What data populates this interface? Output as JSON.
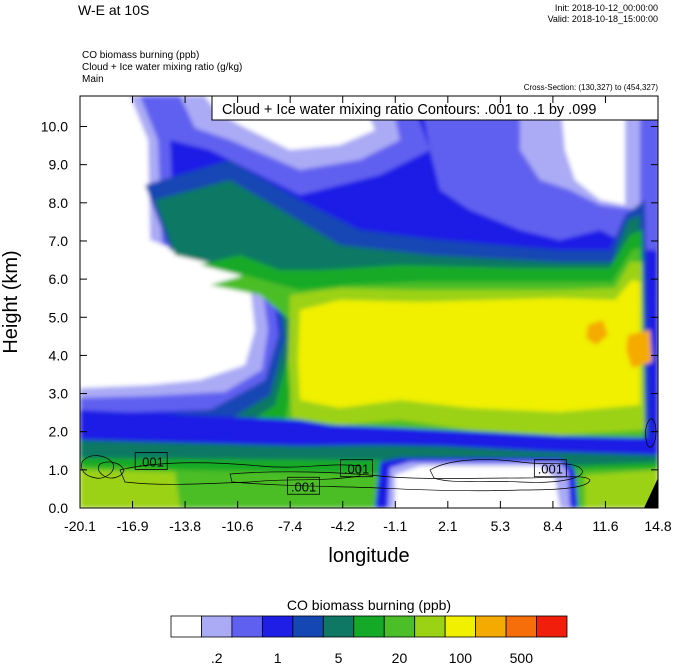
{
  "header": {
    "title": "W-E at 10S",
    "init": "Init: 2018-10-12_00:00:00",
    "valid": "Valid: 2018-10-18_15:00:00",
    "field_1": "CO biomass burning   (ppb)",
    "field_2": "Cloud + Ice water mixing ratio   (g/kg)",
    "field_3": "Main",
    "cross_section": "Cross-Section: (130,327) to (454,327)"
  },
  "chart_data": {
    "type": "heatmap",
    "annotation": "Cloud + Ice water mixing ratio Contours: .001 to .1 by .099",
    "xlabel": "longitude",
    "ylabel": "Height (km)",
    "xlim": [
      -20.1,
      14.8
    ],
    "ylim": [
      0.0,
      10.8
    ],
    "x_ticks": [
      "-20.1",
      "-16.9",
      "-13.8",
      "-10.6",
      "-7.4",
      "-4.2",
      "-1.1",
      "2.1",
      "5.3",
      "8.4",
      "11.6",
      "14.8"
    ],
    "y_ticks": [
      "0.0",
      "1.0",
      "2.0",
      "3.0",
      "4.0",
      "5.0",
      "6.0",
      "7.0",
      "8.0",
      "9.0",
      "10.0"
    ],
    "contour_labels": [
      {
        "text": ".001",
        "x": -15.8,
        "y": 1.22
      },
      {
        "text": ".001",
        "x": -6.6,
        "y": 0.57
      },
      {
        "text": ".001",
        "x": -3.4,
        "y": 1.03
      },
      {
        "text": ".001",
        "x": 8.3,
        "y": 1.03
      }
    ],
    "colorbar": {
      "title": "CO biomass burning  (ppb)",
      "colors": [
        "#ffffff",
        "#aaaaf5",
        "#6060f0",
        "#1e1ee6",
        "#1446b4",
        "#0f7864",
        "#14aa28",
        "#4bbe28",
        "#9bd214",
        "#f0f000",
        "#f5aa00",
        "#f56e0a",
        "#f01e0a"
      ],
      "labels": [
        {
          "text": ".2",
          "boundary": 1.5
        },
        {
          "text": "1",
          "boundary": 3.5
        },
        {
          "text": "5",
          "boundary": 5.5
        },
        {
          "text": "20",
          "boundary": 7.5
        },
        {
          "text": "100",
          "boundary": 9.5
        },
        {
          "text": "500",
          "boundary": 11.5
        }
      ]
    }
  }
}
